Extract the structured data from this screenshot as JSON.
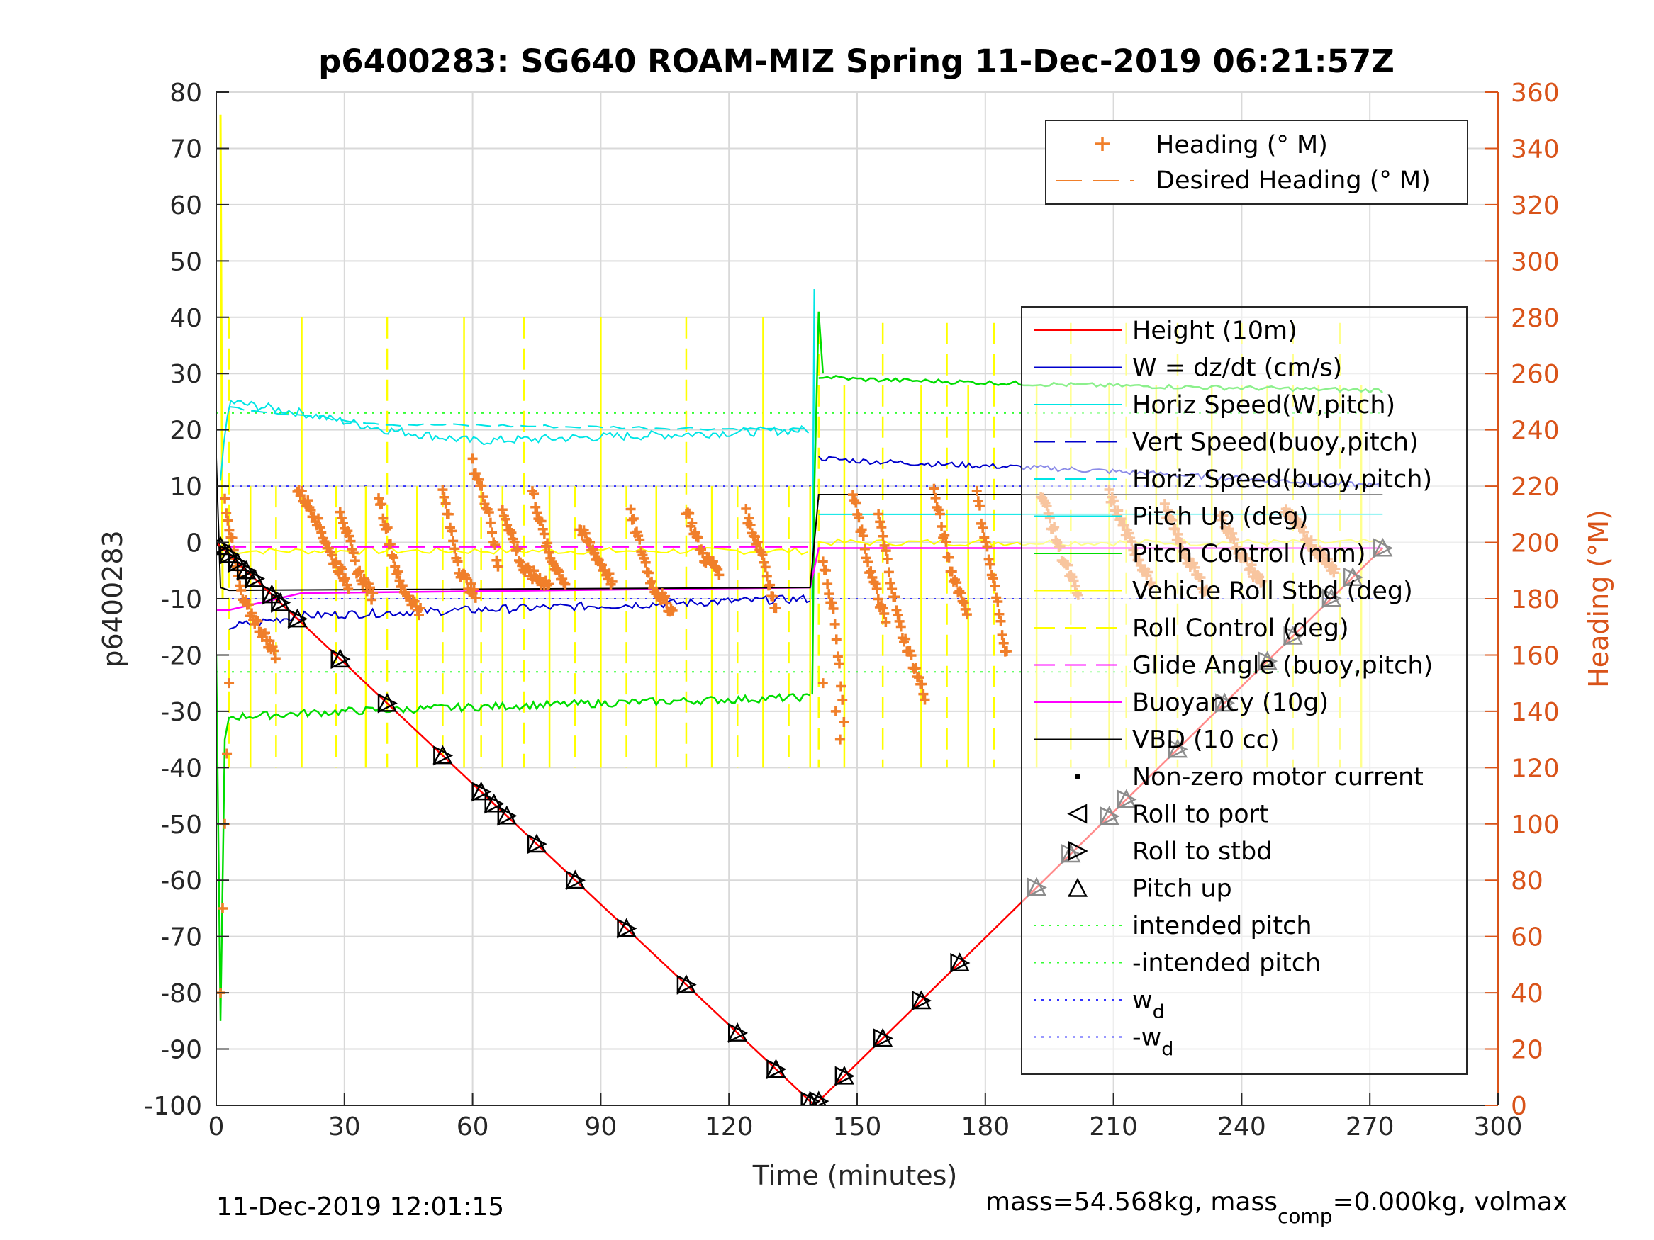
{
  "chart_data": {
    "type": "line",
    "title": "p6400283: SG640 ROAM-MIZ Spring 11-Dec-2019 06:21:57Z",
    "xlabel": "Time (minutes)",
    "ylabel": "p6400283",
    "y2label": "Heading (°M)",
    "xlim": [
      0,
      300
    ],
    "ylim": [
      -100,
      80
    ],
    "y2lim": [
      0,
      360
    ],
    "xticks": [
      "0",
      "30",
      "60",
      "90",
      "120",
      "150",
      "180",
      "210",
      "240",
      "270",
      "300"
    ],
    "yticks": [
      "80",
      "70",
      "60",
      "50",
      "40",
      "30",
      "20",
      "10",
      "0",
      "-10",
      "-20",
      "-30",
      "-40",
      "-50",
      "-60",
      "-70",
      "-80",
      "-90",
      "-100"
    ],
    "y2ticks": [
      "360",
      "340",
      "320",
      "300",
      "280",
      "260",
      "240",
      "220",
      "200",
      "180",
      "160",
      "140",
      "120",
      "100",
      "80",
      "60",
      "40",
      "20",
      "0"
    ],
    "grid": true,
    "legend_top": [
      "Heading (° M)",
      "Desired Heading (° M)"
    ],
    "legend_main": [
      "Height (10m)",
      "W = dz/dt (cm/s)",
      "Horiz Speed(W,pitch)",
      "Vert Speed(buoy,pitch)",
      "Horiz Speed(buoy,pitch)",
      "Pitch Up (deg)",
      "Pitch Control (mm)",
      "Vehicle Roll Stbd (deg)",
      "Roll Control (deg)",
      "Glide Angle (buoy,pitch)",
      "Buoyancy (10g)",
      "VBD (10 cc)",
      "Non-zero motor current",
      "Roll to port",
      "Roll to stbd",
      "Pitch up",
      "intended pitch",
      "-intended pitch",
      "w",
      "-w"
    ],
    "legend_sub": "d",
    "colors": {
      "height": "#FF0000",
      "w": "#0000CC",
      "horiz": "#00E5E5",
      "pitch_control": "#00DD00",
      "roll": "#FFFF00",
      "glide": "#FF00FF",
      "vbd": "#000000",
      "heading": "#F07F2A",
      "intended": "#33FF33",
      "wd": "#3333FF"
    },
    "series": [
      {
        "name": "Height (10m)",
        "x": [
          0,
          140,
          273
        ],
        "y": [
          0,
          -100,
          -1
        ]
      },
      {
        "name": "W = dz/dt (cm/s)",
        "x": [
          0,
          3,
          20,
          60,
          100,
          139,
          141,
          150,
          200,
          273
        ],
        "y": [
          -5,
          -15,
          -13,
          -12,
          -11,
          -10,
          15,
          14,
          13,
          10
        ]
      },
      {
        "name": "Horiz Speed(W,pitch)",
        "x": [
          0,
          3,
          20,
          40,
          60,
          100,
          139,
          141,
          150,
          273
        ],
        "y": [
          5,
          25,
          23,
          20,
          18,
          19,
          20,
          5,
          5,
          5
        ]
      },
      {
        "name": "Pitch Control (mm)",
        "x": [
          0,
          3,
          30,
          70,
          139,
          141,
          150,
          200,
          273
        ],
        "y": [
          -20,
          -31,
          -30,
          -29,
          -27,
          30,
          29,
          28,
          27
        ]
      },
      {
        "name": "Buoyancy (10g)",
        "x": [
          0,
          3,
          20,
          139,
          141,
          273
        ],
        "y": [
          -12,
          -12,
          -9,
          -8,
          -1,
          -1
        ]
      },
      {
        "name": "VBD (10 cc)",
        "x": [
          0,
          1,
          3,
          139,
          141,
          273
        ],
        "y": [
          15,
          -8,
          -8.5,
          -8,
          8.5,
          8.5
        ]
      },
      {
        "name": "intended pitch",
        "y": 23
      },
      {
        "name": "-intended pitch",
        "y": -23
      },
      {
        "name": "w",
        "y": 10
      },
      {
        "name": "-w",
        "y": -10
      }
    ],
    "heading_deg": [
      {
        "x": [
          2,
          6,
          10,
          14
        ],
        "y": [
          215,
          180,
          170,
          160
        ]
      },
      {
        "x": [
          19,
          23,
          27,
          31
        ],
        "y": [
          219,
          210,
          195,
          185
        ]
      },
      {
        "x": [
          29,
          33,
          37
        ],
        "y": [
          212,
          190,
          180
        ]
      },
      {
        "x": [
          38,
          43,
          48
        ],
        "y": [
          217,
          185,
          175
        ]
      },
      {
        "x": [
          53,
          57,
          61
        ],
        "y": [
          218,
          190,
          180
        ]
      },
      {
        "x": [
          60,
          64,
          66
        ],
        "y": [
          228,
          210,
          190
        ]
      },
      {
        "x": [
          67,
          72,
          78
        ],
        "y": [
          212,
          190,
          185
        ]
      },
      {
        "x": [
          74,
          78,
          82
        ],
        "y": [
          218,
          195,
          185
        ]
      },
      {
        "x": [
          85,
          89,
          93
        ],
        "y": [
          205,
          195,
          185
        ]
      },
      {
        "x": [
          97,
          102,
          107
        ],
        "y": [
          210,
          185,
          175
        ]
      },
      {
        "x": [
          110,
          114,
          118
        ],
        "y": [
          212,
          195,
          190
        ]
      },
      {
        "x": [
          124,
          128,
          131
        ],
        "y": [
          210,
          195,
          175
        ]
      },
      {
        "x": [
          142,
          145,
          147
        ],
        "y": [
          195,
          170,
          135
        ]
      },
      {
        "x": [
          149,
          153,
          157
        ],
        "y": [
          217,
          190,
          170
        ]
      },
      {
        "x": [
          155,
          160,
          166
        ],
        "y": [
          210,
          170,
          145
        ]
      },
      {
        "x": [
          168,
          172,
          176
        ],
        "y": [
          218,
          190,
          175
        ]
      },
      {
        "x": [
          178,
          182,
          185
        ],
        "y": [
          217,
          185,
          160
        ]
      },
      {
        "x": [
          193,
          198,
          202
        ],
        "y": [
          218,
          195,
          180
        ]
      },
      {
        "x": [
          209,
          214,
          219
        ],
        "y": [
          217,
          200,
          185
        ]
      },
      {
        "x": [
          222,
          227,
          232
        ],
        "y": [
          212,
          195,
          182
        ]
      },
      {
        "x": [
          235,
          240,
          245
        ],
        "y": [
          210,
          195,
          185
        ]
      },
      {
        "x": [
          250,
          256,
          262
        ],
        "y": [
          212,
          200,
          190
        ]
      }
    ],
    "roll_pitch_markers_x": [
      1,
      3,
      5,
      7,
      9,
      13,
      15,
      19,
      29,
      40,
      53,
      62,
      65,
      68,
      75,
      84,
      96,
      110,
      122,
      131,
      139,
      141,
      147,
      156,
      165,
      174,
      192,
      200,
      209,
      213,
      225,
      236,
      246,
      252,
      261,
      266,
      273
    ]
  },
  "footer": {
    "timestamp": "11-Dec-2019 12:01:15",
    "mass_prefix": "mass=54.568kg, mass",
    "mass_sub": "comp",
    "mass_suffix": "=0.000kg, volmax"
  }
}
